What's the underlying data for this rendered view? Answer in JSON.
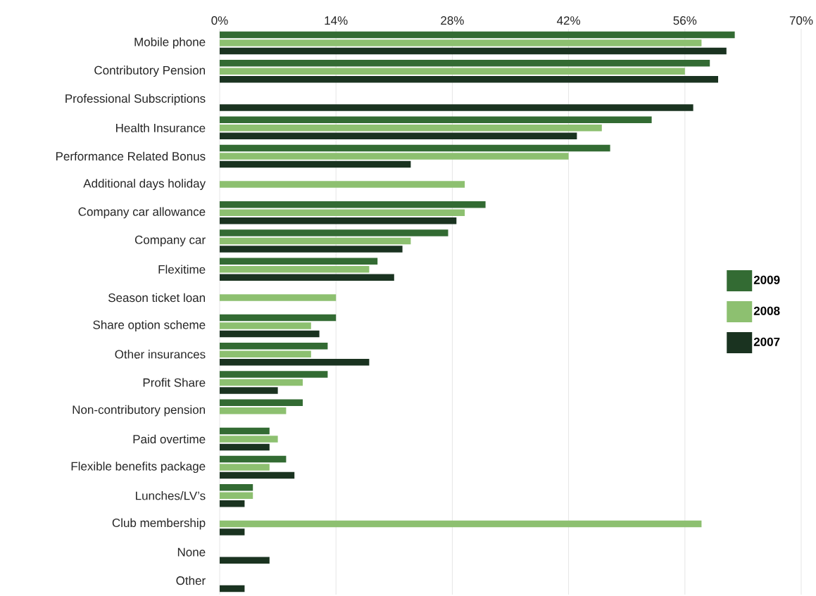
{
  "chart_data": {
    "type": "bar",
    "orientation": "horizontal",
    "categories": [
      "Mobile phone",
      "Contributory Pension",
      "Professional Subscriptions",
      "Health Insurance",
      "Performance Related Bonus",
      "Additional days holiday",
      "Company car allowance",
      "Company car",
      "Flexitime",
      "Season ticket loan",
      "Share option scheme",
      "Other insurances",
      "Profit Share",
      "Non-contributory pension",
      "Paid overtime",
      "Flexible benefits package",
      "Lunches/LV’s",
      "Club membership",
      "None",
      "Other"
    ],
    "series": [
      {
        "name": "2009",
        "color": "#336b33",
        "values": [
          62,
          59,
          null,
          52,
          47,
          null,
          32,
          27.5,
          19,
          null,
          14,
          13,
          13,
          10,
          6,
          8,
          4,
          null,
          null,
          null
        ]
      },
      {
        "name": "2008",
        "color": "#8dc070",
        "values": [
          58,
          56,
          null,
          46,
          42,
          29.5,
          29.5,
          23,
          18,
          14,
          11,
          11,
          10,
          8,
          7,
          6,
          4,
          58,
          null,
          null
        ]
      },
      {
        "name": "2007",
        "color": "#1a3320",
        "values": [
          61,
          60,
          57,
          43,
          23,
          null,
          28.5,
          22,
          21,
          null,
          12,
          18,
          7,
          null,
          6,
          9,
          3,
          3,
          6,
          3
        ]
      }
    ],
    "xlim": [
      0,
      70
    ],
    "xticks": [
      {
        "value": 0,
        "label": "0%"
      },
      {
        "value": 14,
        "label": "14%"
      },
      {
        "value": 28,
        "label": "28%"
      },
      {
        "value": 42,
        "label": "42%"
      },
      {
        "value": 56,
        "label": "56%"
      },
      {
        "value": 70,
        "label": "70%"
      }
    ],
    "grid": "x",
    "legend": "right"
  }
}
